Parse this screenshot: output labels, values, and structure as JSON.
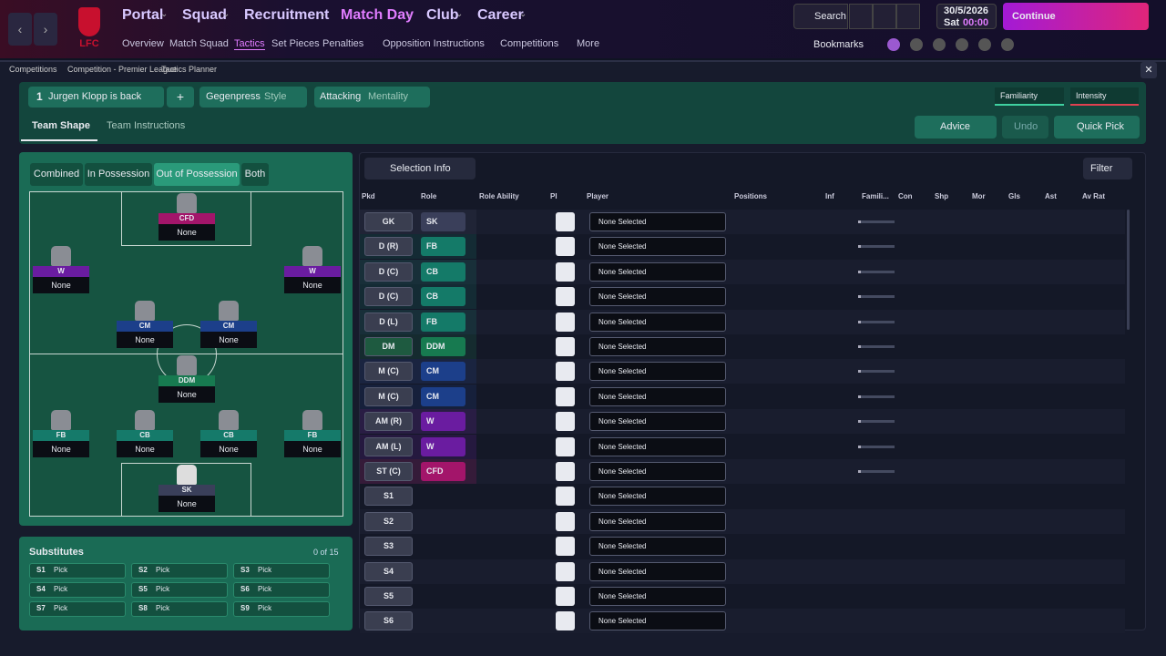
{
  "nav": {
    "club_badge": "LFC",
    "main": [
      "Portal",
      "Squad",
      "Recruitment",
      "Match Day",
      "Club",
      "Career"
    ],
    "sub": [
      "Overview",
      "Match Squad",
      "Tactics",
      "Set Pieces",
      "Penalties",
      "Opposition Instructions",
      "Competitions",
      "More"
    ],
    "search": "Search",
    "date": "30/5/2026",
    "day": "Sat",
    "time": "00:00",
    "continue": "Continue",
    "bookmarks": "Bookmarks"
  },
  "breadcrumb": [
    "Competitions",
    "Competition - Premier League",
    "Tactics Planner"
  ],
  "toolbar": {
    "tactic_number": "1",
    "tactic_name": "Jurgen Klopp is back",
    "plus": "+",
    "style_value": "Gegenpress",
    "style_label": "Style",
    "mentality_value": "Attacking",
    "mentality_label": "Mentality",
    "familiarity": "Familiarity",
    "intensity": "Intensity"
  },
  "tabs": [
    "Team Shape",
    "Team Instructions"
  ],
  "actions": {
    "advice": "Advice",
    "undo": "Undo",
    "quick_pick": "Quick Pick"
  },
  "phase_tabs": [
    "Combined",
    "In Possession",
    "Out of Possession",
    "Both"
  ],
  "pitch": {
    "players": [
      {
        "role": "CFD",
        "name": "None"
      },
      {
        "role": "W",
        "name": "None"
      },
      {
        "role": "W",
        "name": "None"
      },
      {
        "role": "CM",
        "name": "None"
      },
      {
        "role": "CM",
        "name": "None"
      },
      {
        "role": "DDM",
        "name": "None"
      },
      {
        "role": "FB",
        "name": "None"
      },
      {
        "role": "CB",
        "name": "None"
      },
      {
        "role": "CB",
        "name": "None"
      },
      {
        "role": "FB",
        "name": "None"
      },
      {
        "role": "SK",
        "name": "None"
      }
    ]
  },
  "substitutes": {
    "title": "Substitutes",
    "count": "0 of 15",
    "slots": [
      {
        "slot": "S1",
        "value": "Pick"
      },
      {
        "slot": "S2",
        "value": "Pick"
      },
      {
        "slot": "S3",
        "value": "Pick"
      },
      {
        "slot": "S4",
        "value": "Pick"
      },
      {
        "slot": "S5",
        "value": "Pick"
      },
      {
        "slot": "S6",
        "value": "Pick"
      },
      {
        "slot": "S7",
        "value": "Pick"
      },
      {
        "slot": "S8",
        "value": "Pick"
      },
      {
        "slot": "S9",
        "value": "Pick"
      }
    ]
  },
  "selection": {
    "info": "Selection Info",
    "filter": "Filter",
    "columns": [
      "Pkd",
      "Role",
      "Role Ability",
      "PI",
      "Player",
      "Positions",
      "Inf",
      "Famili...",
      "Con",
      "Shp",
      "Mor",
      "Gls",
      "Ast",
      "Av Rat"
    ],
    "rows": [
      {
        "position": "GK",
        "role": "SK",
        "player": "None Selected"
      },
      {
        "position": "D (R)",
        "role": "FB",
        "player": "None Selected"
      },
      {
        "position": "D (C)",
        "role": "CB",
        "player": "None Selected"
      },
      {
        "position": "D (C)",
        "role": "CB",
        "player": "None Selected"
      },
      {
        "position": "D (L)",
        "role": "FB",
        "player": "None Selected"
      },
      {
        "position": "DM",
        "role": "DDM",
        "player": "None Selected"
      },
      {
        "position": "M (C)",
        "role": "CM",
        "player": "None Selected"
      },
      {
        "position": "M (C)",
        "role": "CM",
        "player": "None Selected"
      },
      {
        "position": "AM (R)",
        "role": "W",
        "player": "None Selected"
      },
      {
        "position": "AM (L)",
        "role": "W",
        "player": "None Selected"
      },
      {
        "position": "ST (C)",
        "role": "CFD",
        "player": "None Selected"
      },
      {
        "position": "S1",
        "player": "None Selected"
      },
      {
        "position": "S2",
        "player": "None Selected"
      },
      {
        "position": "S3",
        "player": "None Selected"
      },
      {
        "position": "S4",
        "player": "None Selected"
      },
      {
        "position": "S5",
        "player": "None Selected"
      },
      {
        "position": "S6",
        "player": "None Selected"
      }
    ]
  }
}
